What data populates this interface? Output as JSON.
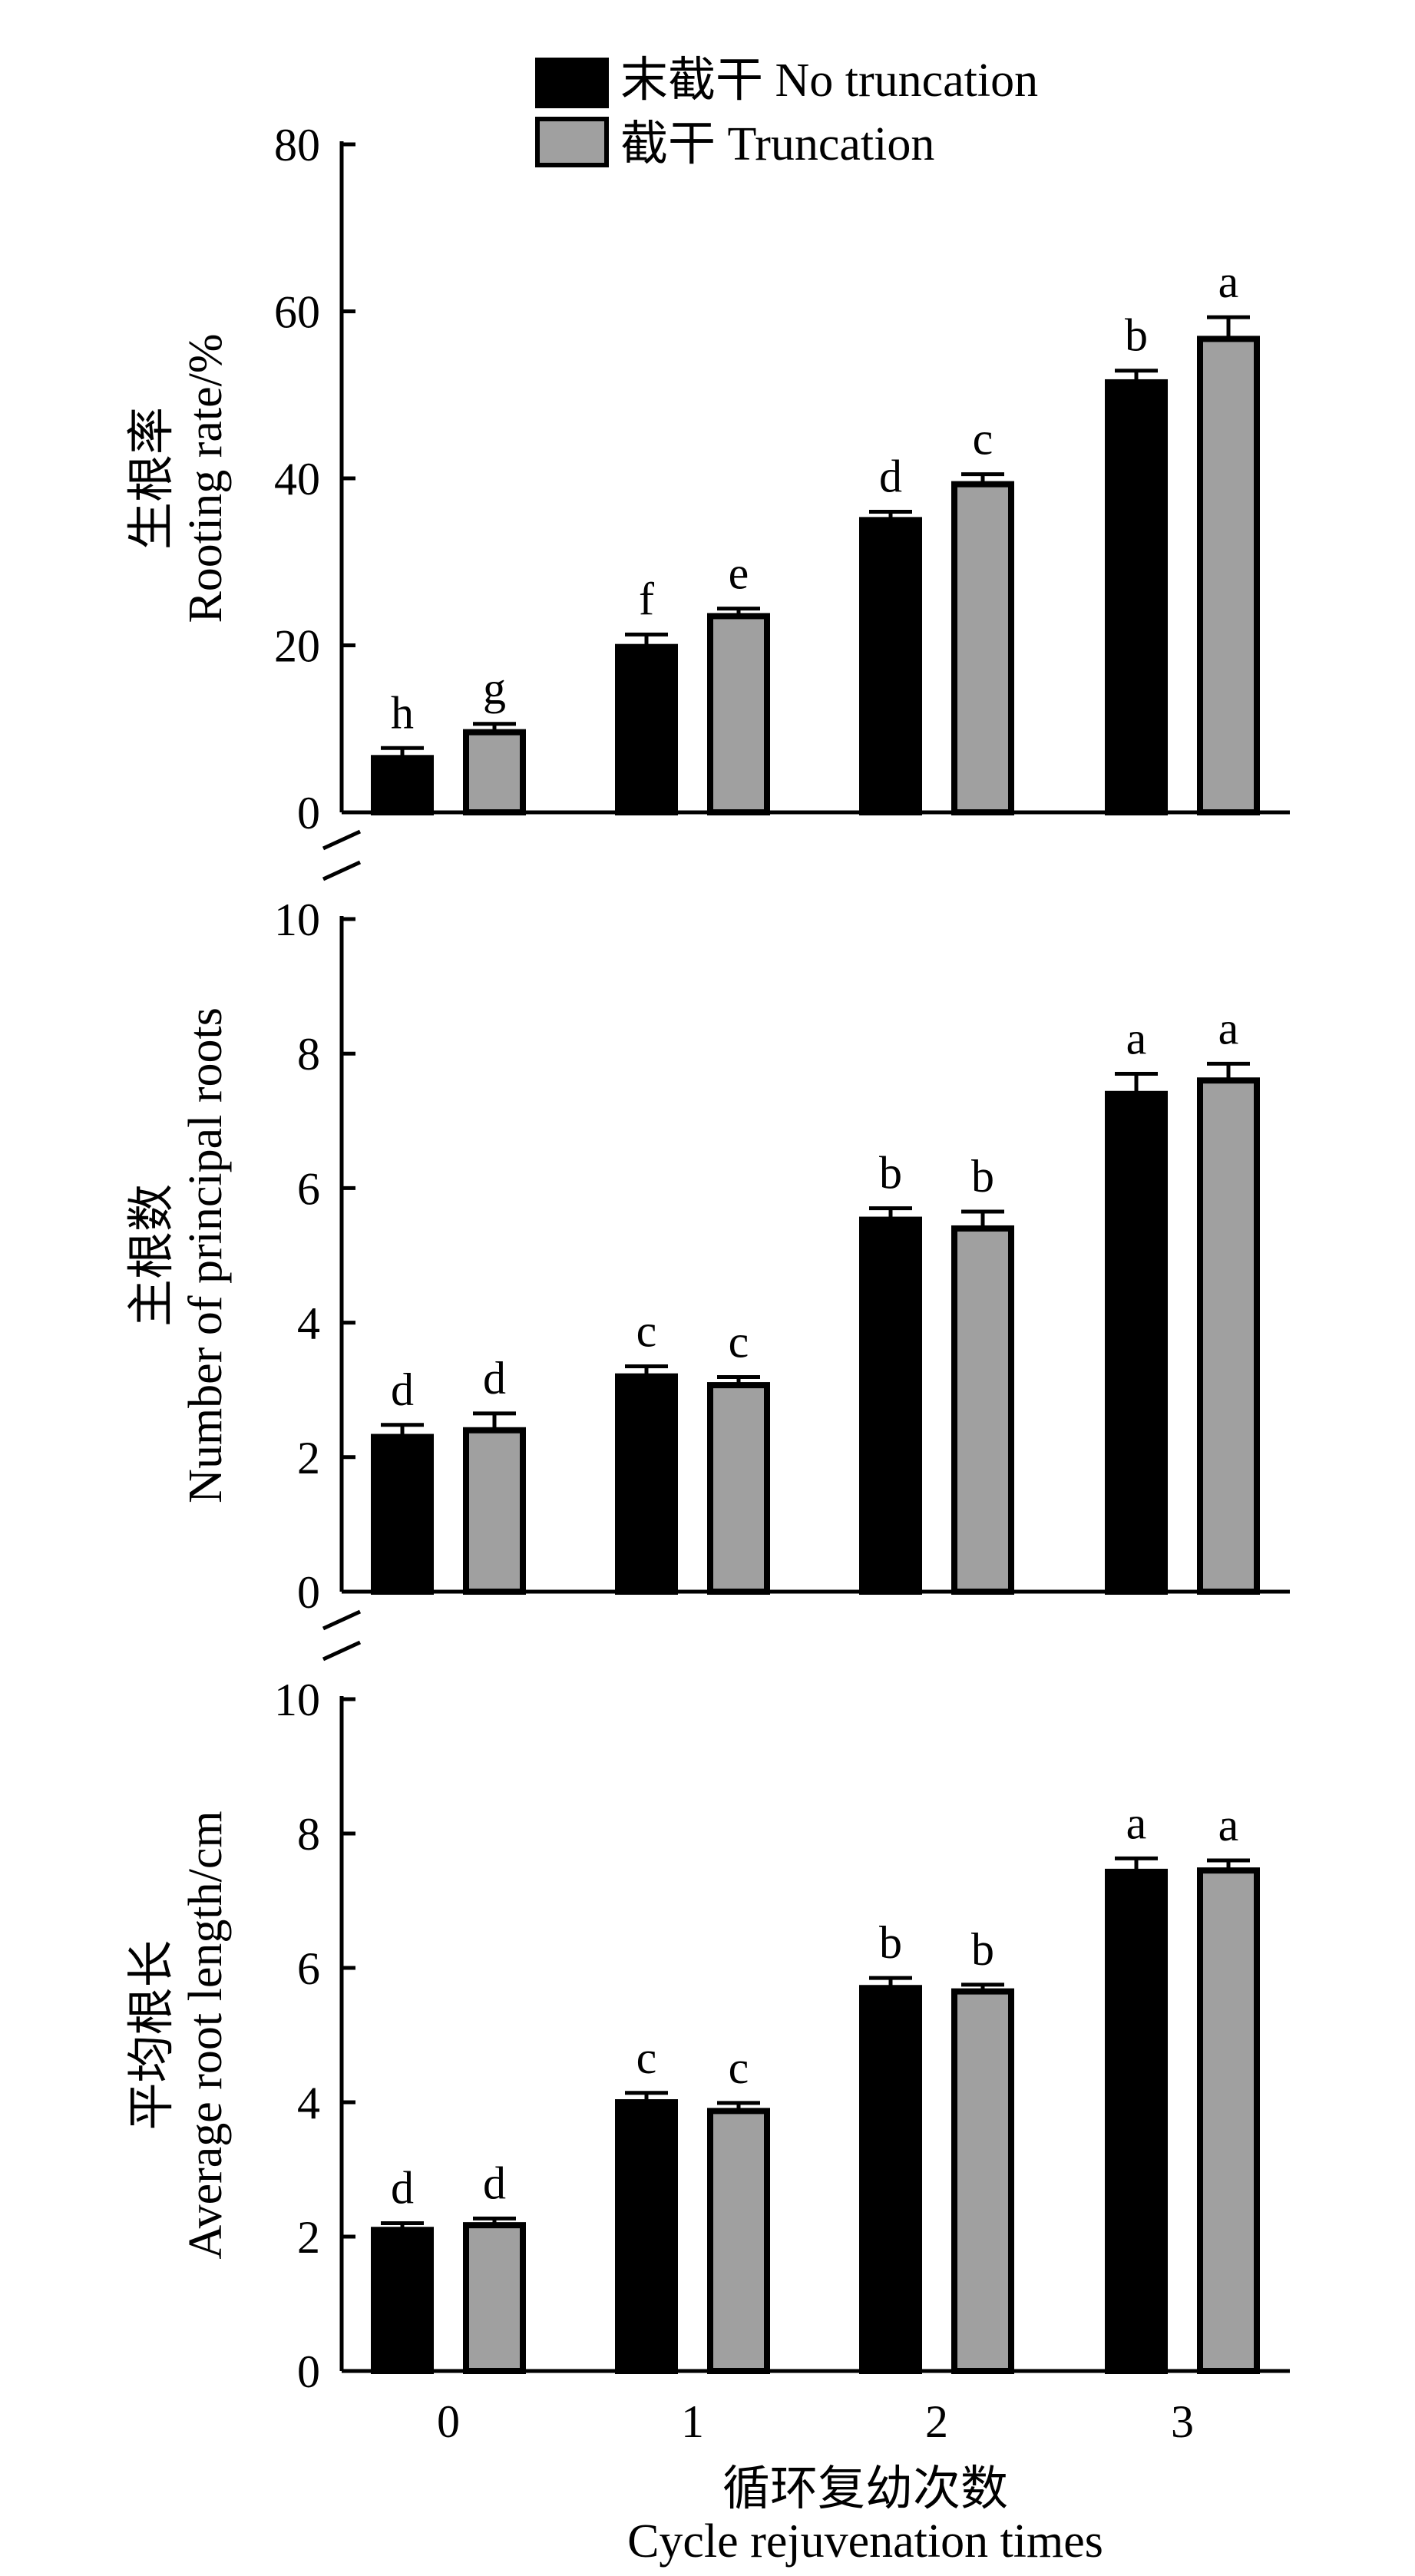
{
  "legend": {
    "position": "top-center",
    "items": [
      {
        "label": "末截干 No truncation",
        "color": "#000000"
      },
      {
        "label": "截干 Truncation",
        "color": "#a0a0a0"
      }
    ]
  },
  "x_axis": {
    "label_zh": "循环复幼次数",
    "label_en": "Cycle rejuvenation times",
    "categories": [
      "0",
      "1",
      "2",
      "3"
    ]
  },
  "chart_data": [
    {
      "type": "bar",
      "ylabel_zh": "生根率",
      "ylabel_en": "Rooting rate/%",
      "ylim": [
        0,
        80
      ],
      "yticks": [
        "0",
        "20",
        "40",
        "60",
        "80"
      ],
      "categories": [
        "0",
        "1",
        "2",
        "3"
      ],
      "series": [
        {
          "name": "末截干 No truncation",
          "color": "#000000",
          "values": [
            6.5,
            19.8,
            35.0,
            51.5
          ],
          "errors": [
            1.2,
            1.5,
            1.0,
            1.4
          ],
          "letters": [
            "h",
            "f",
            "d",
            "b"
          ]
        },
        {
          "name": "截干 Truncation",
          "color": "#a0a0a0",
          "values": [
            9.6,
            23.5,
            39.3,
            56.7
          ],
          "errors": [
            1.0,
            0.9,
            1.2,
            2.6
          ],
          "letters": [
            "g",
            "e",
            "c",
            "a"
          ]
        }
      ]
    },
    {
      "type": "bar",
      "ylabel_zh": "主根数",
      "ylabel_en": "Number of principal roots",
      "ylim": [
        0,
        10
      ],
      "yticks": [
        "0",
        "2",
        "4",
        "6",
        "8",
        "10"
      ],
      "categories": [
        "0",
        "1",
        "2",
        "3"
      ],
      "series": [
        {
          "name": "末截干 No truncation",
          "color": "#000000",
          "values": [
            2.3,
            3.2,
            5.53,
            7.4
          ],
          "errors": [
            0.18,
            0.15,
            0.17,
            0.3
          ],
          "letters": [
            "d",
            "c",
            "b",
            "a"
          ]
        },
        {
          "name": "截干 Truncation",
          "color": "#a0a0a0",
          "values": [
            2.4,
            3.07,
            5.4,
            7.6
          ],
          "errors": [
            0.25,
            0.12,
            0.25,
            0.25
          ],
          "letters": [
            "d",
            "c",
            "b",
            "a"
          ]
        }
      ]
    },
    {
      "type": "bar",
      "ylabel_zh": "平均根长",
      "ylabel_en": "Average root length/cm",
      "ylim": [
        0,
        10
      ],
      "yticks": [
        "0",
        "2",
        "4",
        "6",
        "8",
        "10"
      ],
      "categories": [
        "0",
        "1",
        "2",
        "3"
      ],
      "series": [
        {
          "name": "末截干 No truncation",
          "color": "#000000",
          "values": [
            2.1,
            4.0,
            5.7,
            7.43
          ],
          "errors": [
            0.1,
            0.14,
            0.15,
            0.2
          ],
          "letters": [
            "d",
            "c",
            "b",
            "a"
          ]
        },
        {
          "name": "截干 Truncation",
          "color": "#a0a0a0",
          "values": [
            2.17,
            3.87,
            5.65,
            7.45
          ],
          "errors": [
            0.1,
            0.12,
            0.1,
            0.15
          ],
          "letters": [
            "d",
            "c",
            "b",
            "a"
          ]
        }
      ]
    }
  ]
}
